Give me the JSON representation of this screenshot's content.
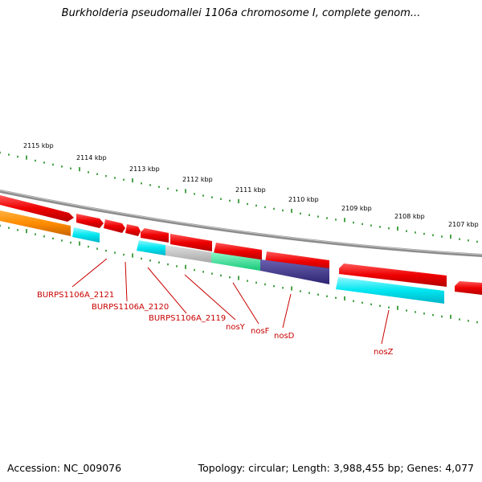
{
  "title": "Burkholderia pseudomallei 1106a chromosome I, complete genom...",
  "footer": {
    "accession": "Accession: NC_009076",
    "topology": "Topology: circular; Length: 3,988,455 bp; Genes: 4,077"
  },
  "scale_labels": [
    "2115 kbp",
    "2114 kbp",
    "2113 kbp",
    "2112 kbp",
    "2111 kbp",
    "2110 kbp",
    "2109 kbp",
    "2108 kbp",
    "2107 kbp"
  ],
  "gene_labels": [
    "BURPS1106A_2121",
    "BURPS1106A_2120",
    "BURPS1106A_2119",
    "nosY",
    "nosF",
    "nosD",
    "nosZ"
  ],
  "colors": {
    "backbone": "#8c8c8c",
    "forward_gene": "#ee0000",
    "cyan": "#00e6f0",
    "orange": "#ff8c00",
    "gray": "#bdbdbd",
    "green": "#1ef08c",
    "navy": "#4a4090",
    "tick": "#1e8c1e",
    "label": "#c80000"
  }
}
